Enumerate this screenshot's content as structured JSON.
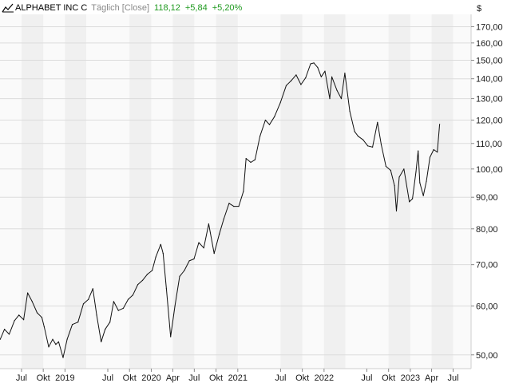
{
  "header": {
    "name": "ALPHABET INC C",
    "subtitle": "Täglich [Close]",
    "last": "118,12",
    "change": "+5,84",
    "change_pct": "+5,20%",
    "positive_color": "#1f9a1f",
    "icon": "line-chart-icon"
  },
  "chart_data": {
    "type": "line",
    "title": "ALPHABET INC C",
    "subtitle": "Täglich [Close]",
    "yunit": "$",
    "yscale": "log",
    "ylim": [
      47.5,
      178
    ],
    "xlim": [
      "2018-04-01",
      "2023-09-15"
    ],
    "grid": true,
    "yticks": [
      {
        "v": 50,
        "label": "50,00"
      },
      {
        "v": 60,
        "label": "60,00"
      },
      {
        "v": 70,
        "label": "70,00"
      },
      {
        "v": 80,
        "label": "80,00"
      },
      {
        "v": 90,
        "label": "90,00"
      },
      {
        "v": 100,
        "label": "100,00"
      },
      {
        "v": 110,
        "label": "110,00"
      },
      {
        "v": 120,
        "label": "120,00"
      },
      {
        "v": 130,
        "label": "130,00"
      },
      {
        "v": 140,
        "label": "140,00"
      },
      {
        "v": 150,
        "label": "150,00"
      },
      {
        "v": 160,
        "label": "160,00"
      },
      {
        "v": 170,
        "label": "170,00"
      }
    ],
    "xticks": [
      {
        "date": "2018-07-01",
        "label": "Jul"
      },
      {
        "date": "2018-10-01",
        "label": "Okt"
      },
      {
        "date": "2019-01-01",
        "label": "2019"
      },
      {
        "date": "2019-07-01",
        "label": "Jul"
      },
      {
        "date": "2019-10-01",
        "label": "Okt"
      },
      {
        "date": "2020-01-01",
        "label": "2020"
      },
      {
        "date": "2020-04-01",
        "label": "Apr"
      },
      {
        "date": "2020-07-01",
        "label": "Jul"
      },
      {
        "date": "2020-10-01",
        "label": "Okt"
      },
      {
        "date": "2021-01-01",
        "label": "2021"
      },
      {
        "date": "2021-07-01",
        "label": "Jul"
      },
      {
        "date": "2021-10-01",
        "label": "Okt"
      },
      {
        "date": "2022-01-01",
        "label": "2022"
      },
      {
        "date": "2022-07-01",
        "label": "Jul"
      },
      {
        "date": "2022-10-01",
        "label": "Okt"
      },
      {
        "date": "2023-01-01",
        "label": "2023"
      },
      {
        "date": "2023-04-01",
        "label": "Apr"
      },
      {
        "date": "2023-07-01",
        "label": "Jul"
      }
    ],
    "series": [
      {
        "x": [
          "2018-04-02",
          "2018-04-20",
          "2018-05-10",
          "2018-06-01",
          "2018-06-20",
          "2018-07-10",
          "2018-07-27",
          "2018-08-15",
          "2018-09-05",
          "2018-09-25",
          "2018-10-05",
          "2018-10-24",
          "2018-11-10",
          "2018-11-23",
          "2018-12-05",
          "2018-12-24",
          "2019-01-10",
          "2019-02-01",
          "2019-02-25",
          "2019-03-20",
          "2019-04-10",
          "2019-04-29",
          "2019-05-15",
          "2019-06-03",
          "2019-06-20",
          "2019-07-10",
          "2019-07-26",
          "2019-08-15",
          "2019-09-05",
          "2019-09-25",
          "2019-10-15",
          "2019-11-05",
          "2019-11-25",
          "2019-12-15",
          "2020-01-05",
          "2020-01-20",
          "2020-02-10",
          "2020-02-20",
          "2020-03-05",
          "2020-03-23",
          "2020-04-10",
          "2020-04-30",
          "2020-05-20",
          "2020-06-10",
          "2020-06-30",
          "2020-07-20",
          "2020-08-10",
          "2020-08-31",
          "2020-09-23",
          "2020-10-15",
          "2020-11-03",
          "2020-11-25",
          "2020-12-15",
          "2021-01-05",
          "2021-01-25",
          "2021-02-05",
          "2021-02-25",
          "2021-03-15",
          "2021-04-05",
          "2021-04-28",
          "2021-05-15",
          "2021-06-05",
          "2021-06-30",
          "2021-07-25",
          "2021-08-15",
          "2021-09-05",
          "2021-09-25",
          "2021-10-15",
          "2021-11-05",
          "2021-11-19",
          "2021-12-05",
          "2021-12-20",
          "2022-01-05",
          "2022-01-25",
          "2022-02-03",
          "2022-02-25",
          "2022-03-15",
          "2022-03-30",
          "2022-04-20",
          "2022-05-10",
          "2022-05-25",
          "2022-06-15",
          "2022-07-05",
          "2022-07-25",
          "2022-08-15",
          "2022-08-31",
          "2022-09-20",
          "2022-10-10",
          "2022-10-26",
          "2022-11-03",
          "2022-11-15",
          "2022-12-05",
          "2022-12-28",
          "2023-01-10",
          "2023-01-25",
          "2023-02-03",
          "2023-02-10",
          "2023-02-25",
          "2023-03-10",
          "2023-03-25",
          "2023-04-10",
          "2023-04-25",
          "2023-05-05"
        ],
        "y": [
          53.0,
          55.0,
          54.0,
          56.8,
          58.0,
          57.0,
          63.0,
          61.0,
          58.5,
          57.5,
          55.5,
          51.5,
          53.0,
          52.0,
          52.5,
          49.5,
          53.0,
          56.0,
          56.5,
          60.5,
          61.5,
          64.0,
          58.0,
          52.5,
          55.0,
          56.5,
          61.0,
          59.0,
          59.5,
          61.5,
          62.5,
          65.0,
          66.0,
          67.5,
          68.5,
          72.0,
          75.5,
          73.0,
          64.0,
          53.5,
          60.0,
          67.0,
          68.5,
          71.0,
          71.5,
          76.0,
          74.5,
          81.5,
          73.0,
          78.5,
          83.0,
          88.0,
          87.0,
          87.0,
          92.0,
          104.0,
          102.5,
          103.5,
          113.0,
          120.0,
          118.0,
          121.5,
          128.0,
          136.5,
          139.0,
          142.0,
          137.0,
          140.5,
          148.0,
          148.5,
          146.0,
          141.0,
          144.0,
          130.0,
          141.0,
          134.0,
          130.0,
          143.0,
          124.0,
          115.0,
          113.0,
          111.5,
          109.0,
          108.5,
          119.0,
          109.5,
          101.0,
          99.5,
          94.0,
          85.5,
          97.0,
          100.0,
          88.5,
          89.5,
          99.0,
          107.0,
          95.0,
          90.5,
          95.5,
          104.5,
          107.5,
          106.5,
          118.12
        ]
      }
    ]
  }
}
